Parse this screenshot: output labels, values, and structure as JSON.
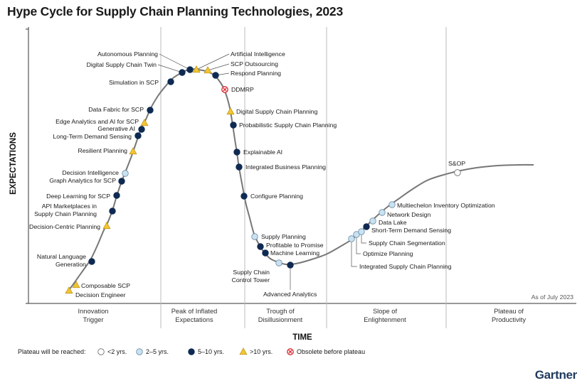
{
  "title": "Hype Cycle for Supply Chain Planning Technologies, 2023",
  "brand": "Gartner",
  "chart_data": {
    "type": "scatter",
    "title": "Hype Cycle for Supply Chain Planning Technologies, 2023",
    "xlabel": "TIME",
    "ylabel": "EXPECTATIONS",
    "as_of": "As of July 2023",
    "phases": [
      {
        "line1": "Innovation",
        "line2": "Trigger"
      },
      {
        "line1": "Peak of Inflated",
        "line2": "Expectations"
      },
      {
        "line1": "Trough of",
        "line2": "Disillusionment"
      },
      {
        "line1": "Slope of",
        "line2": "Enlightenment"
      },
      {
        "line1": "Plateau of",
        "line2": "Productivity"
      }
    ],
    "legend": {
      "title": "Plateau will be reached:",
      "items": [
        {
          "key": "lt2",
          "label": "<2 yrs."
        },
        {
          "key": "2to5",
          "label": "2–5 yrs."
        },
        {
          "key": "5to10",
          "label": "5–10 yrs."
        },
        {
          "key": "gt10",
          "label": ">10 yrs."
        },
        {
          "key": "obsolete",
          "label": "Obsolete before plateau"
        }
      ]
    },
    "colors": {
      "curve": "#777777",
      "lt2": "#ffffff",
      "2to5": "#c9e2f2",
      "5to10": "#0f2a52",
      "gt10": "#f2c531",
      "obsolete": "#d9282e",
      "grid": "#bbbbbb"
    },
    "points": [
      {
        "name": "Decision Engineer",
        "cat": "gt10"
      },
      {
        "name": "Composable SCP",
        "cat": "gt10"
      },
      {
        "name": "Natural Language Generation",
        "cat": "5to10"
      },
      {
        "name": "Decision-Centric Planning",
        "cat": "gt10"
      },
      {
        "name": "API Marketplaces in Supply Chain Planning",
        "cat": "5to10"
      },
      {
        "name": "Deep Learning for SCP",
        "cat": "5to10"
      },
      {
        "name": "Graph Analytics for SCP",
        "cat": "5to10"
      },
      {
        "name": "Decision Intelligence",
        "cat": "2to5"
      },
      {
        "name": "Resilient Planning",
        "cat": "gt10"
      },
      {
        "name": "Long-Term Demand Sensing",
        "cat": "5to10"
      },
      {
        "name": "Generative AI",
        "cat": "5to10"
      },
      {
        "name": "Edge Analytics and AI for SCP",
        "cat": "gt10"
      },
      {
        "name": "Data Fabric for SCP",
        "cat": "5to10"
      },
      {
        "name": "Simulation in SCP",
        "cat": "5to10"
      },
      {
        "name": "Digital Supply Chain Twin",
        "cat": "5to10"
      },
      {
        "name": "Autonomous Planning",
        "cat": "5to10"
      },
      {
        "name": "Artificial Intelligence",
        "cat": "gt10"
      },
      {
        "name": "SCP Outsourcing",
        "cat": "gt10"
      },
      {
        "name": "Respond Planning",
        "cat": "5to10"
      },
      {
        "name": "DDMRP",
        "cat": "obsolete"
      },
      {
        "name": "Digital Supply Chain Planning",
        "cat": "gt10"
      },
      {
        "name": "Probabilistic Supply Chain Planning",
        "cat": "5to10"
      },
      {
        "name": "Explainable AI",
        "cat": "5to10"
      },
      {
        "name": "Integrated Business Planning",
        "cat": "5to10"
      },
      {
        "name": "Configure Planning",
        "cat": "5to10"
      },
      {
        "name": "Supply Planning",
        "cat": "2to5"
      },
      {
        "name": "Profitable to Promise",
        "cat": "5to10"
      },
      {
        "name": "Machine Learning",
        "cat": "5to10"
      },
      {
        "name": "Supply Chain Control Tower",
        "cat": "2to5"
      },
      {
        "name": "Advanced Analytics",
        "cat": "5to10"
      },
      {
        "name": "Integrated Supply Chain Planning",
        "cat": "2to5"
      },
      {
        "name": "Optimize Planning",
        "cat": "2to5"
      },
      {
        "name": "Supply Chain Segmentation",
        "cat": "2to5"
      },
      {
        "name": "Short-Term Demand Sensing",
        "cat": "5to10"
      },
      {
        "name": "Data Lake",
        "cat": "2to5"
      },
      {
        "name": "Network Design",
        "cat": "2to5"
      },
      {
        "name": "Multiechelon Inventory Optimization",
        "cat": "2to5"
      },
      {
        "name": "S&OP",
        "cat": "lt2"
      }
    ]
  }
}
